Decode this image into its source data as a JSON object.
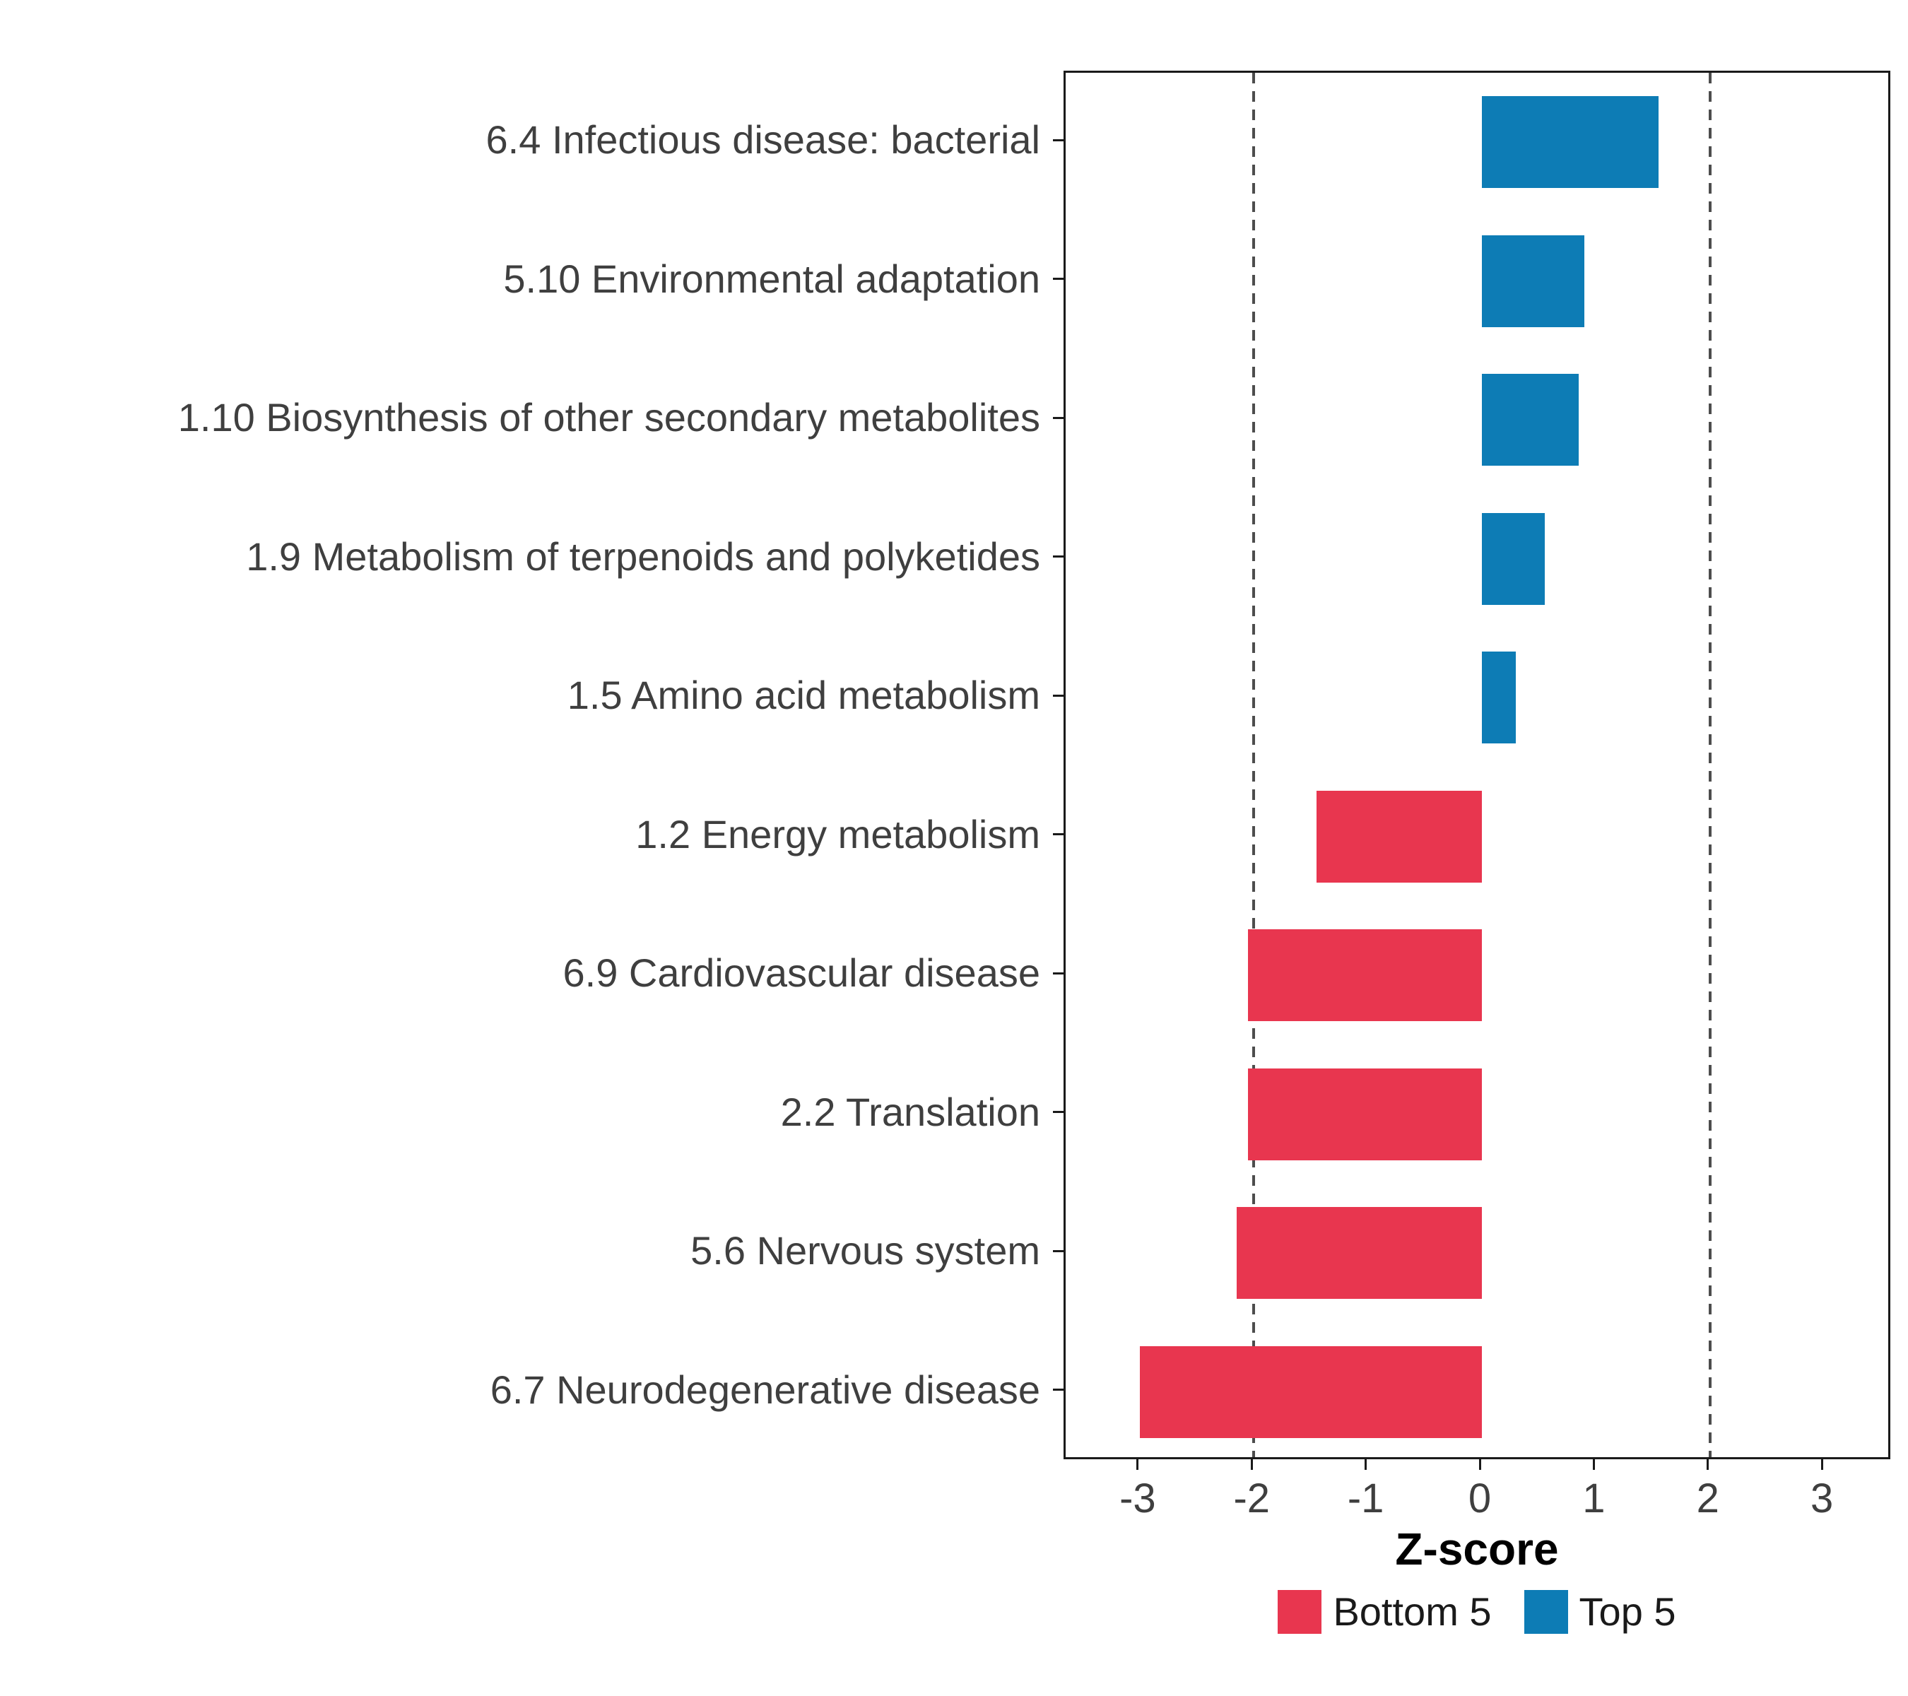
{
  "chart_data": {
    "type": "bar",
    "orientation": "horizontal",
    "title": "",
    "xlabel": "Z-score",
    "ylabel": "",
    "xlim": [
      -3.65,
      3.6
    ],
    "x_ticks": [
      -3,
      -2,
      -1,
      0,
      1,
      2,
      3
    ],
    "reference_lines": [
      -2,
      2
    ],
    "grid": false,
    "categories": [
      "6.4 Infectious disease: bacterial",
      "5.10 Environmental adaptation",
      "1.10 Biosynthesis of other secondary metabolites",
      "1.9 Metabolism of terpenoids and polyketides",
      "1.5 Amino acid metabolism",
      "1.2 Energy metabolism",
      "6.9 Cardiovascular disease",
      "2.2 Translation",
      "5.6 Nervous system",
      "6.7 Neurodegenerative disease"
    ],
    "values": [
      1.55,
      0.9,
      0.85,
      0.55,
      0.3,
      -1.45,
      -2.05,
      -2.05,
      -2.15,
      -3.0
    ],
    "groups": [
      "Top 5",
      "Top 5",
      "Top 5",
      "Top 5",
      "Top 5",
      "Bottom 5",
      "Bottom 5",
      "Bottom 5",
      "Bottom 5",
      "Bottom 5"
    ],
    "legend": [
      {
        "label": "Bottom 5",
        "color": "#E8364F"
      },
      {
        "label": "Top 5",
        "color": "#0D7CB5"
      }
    ],
    "legend_position": "bottom",
    "colors": {
      "Bottom 5": "#E8364F",
      "Top 5": "#0D7CB5",
      "reference_line": "#4d4d4d",
      "panel_border": "#1a1a1a",
      "axis_text": "#3f3f3f"
    }
  }
}
